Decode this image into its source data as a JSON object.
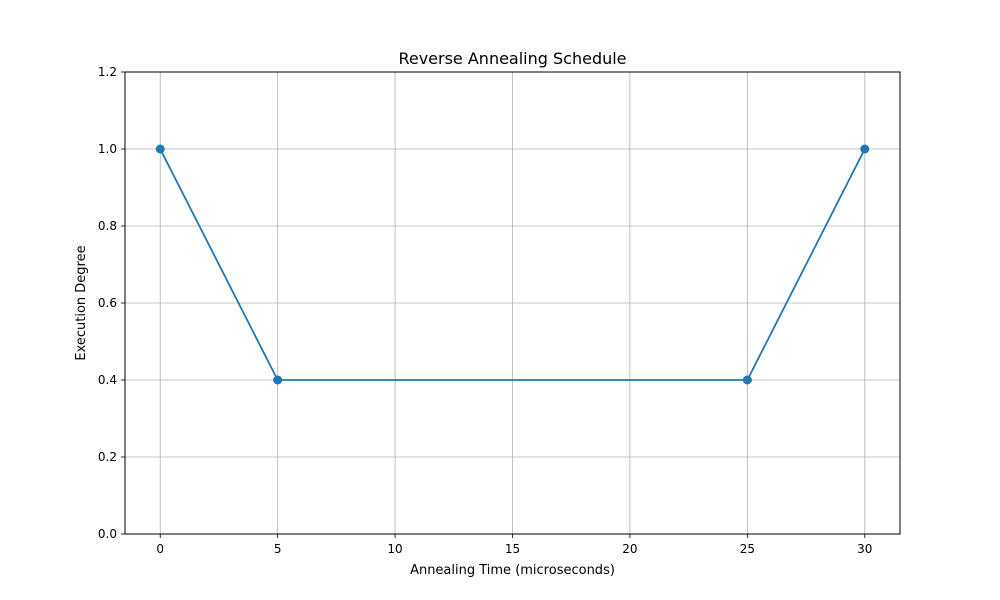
{
  "chart_data": {
    "type": "line",
    "title": "Reverse Annealing Schedule",
    "xlabel": "Annealing Time (microseconds)",
    "ylabel": "Execution Degree",
    "xlim": [
      -1.5,
      31.5
    ],
    "ylim": [
      0,
      1.2
    ],
    "x_ticks": [
      0,
      5,
      10,
      15,
      20,
      25,
      30
    ],
    "y_ticks": [
      0.0,
      0.2,
      0.4,
      0.6,
      0.8,
      1.0,
      1.2
    ],
    "x_tick_labels": [
      "0",
      "5",
      "10",
      "15",
      "20",
      "25",
      "30"
    ],
    "y_tick_labels": [
      "0.0",
      "0.2",
      "0.4",
      "0.6",
      "0.8",
      "1.0",
      "1.2"
    ],
    "grid": true,
    "legend": false,
    "series": [
      {
        "x": [
          0,
          5,
          25,
          30
        ],
        "y": [
          1.0,
          0.4,
          0.4,
          1.0
        ],
        "color": "#1f77b4",
        "marker": "circle"
      }
    ]
  }
}
